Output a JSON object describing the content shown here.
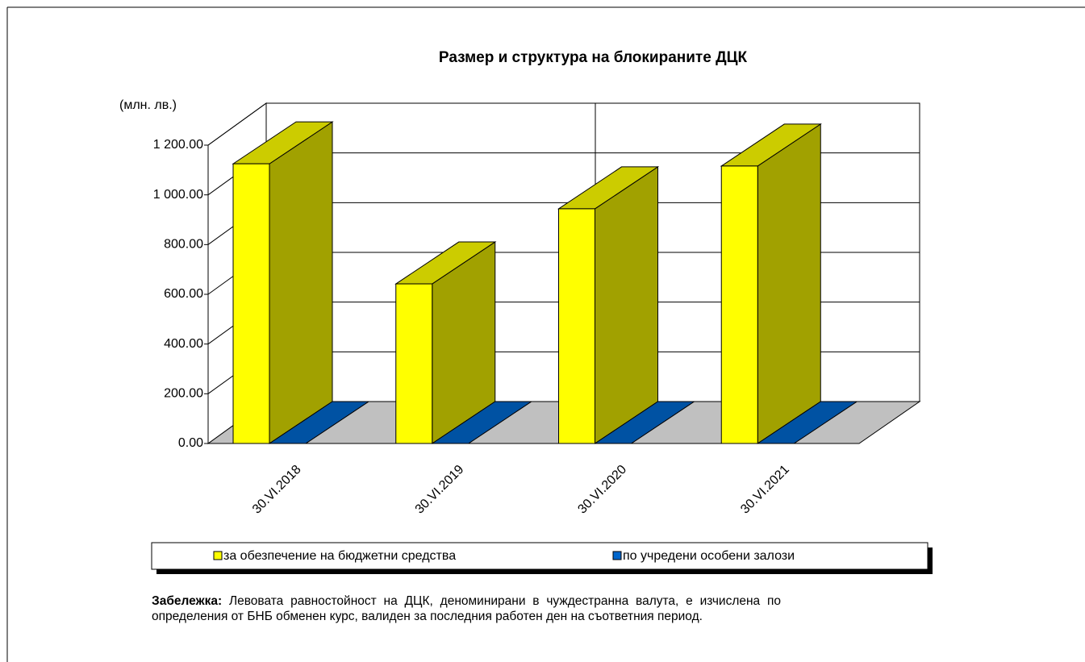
{
  "chart_data": {
    "type": "bar3d",
    "title": "Размер и структура на блокираните ДЦК",
    "y_label": "(млн. лв.)",
    "categories": [
      "30.VI.2018",
      "30.VI.2019",
      "30.VI.2020",
      "30.VI.2021"
    ],
    "series": [
      {
        "name": "за обезпечение на бюджетни средства",
        "color": "#ffff00",
        "values": [
          1125,
          642,
          944,
          1116
        ]
      },
      {
        "name": "по учредени  особени залози",
        "color": "#0066cc",
        "values": [
          0,
          0,
          0,
          0
        ]
      }
    ],
    "ylim": [
      0,
      1200
    ],
    "yticks": [
      {
        "value": 0,
        "label": "0.00"
      },
      {
        "value": 200,
        "label": "200.00"
      },
      {
        "value": 400,
        "label": "400.00"
      },
      {
        "value": 600,
        "label": "600.00"
      },
      {
        "value": 800,
        "label": "800.00"
      },
      {
        "value": 1000,
        "label": "1 000.00"
      },
      {
        "value": 1200,
        "label": "1 200.00"
      }
    ],
    "grid": true
  },
  "note": {
    "label": "Забележка:",
    "text": "Левовата равностойност на ДЦК, деноминирани в чуждестранна валута, е изчислена по определения от БНБ обменен курс, валиден за последния работен ден на съответния период."
  }
}
